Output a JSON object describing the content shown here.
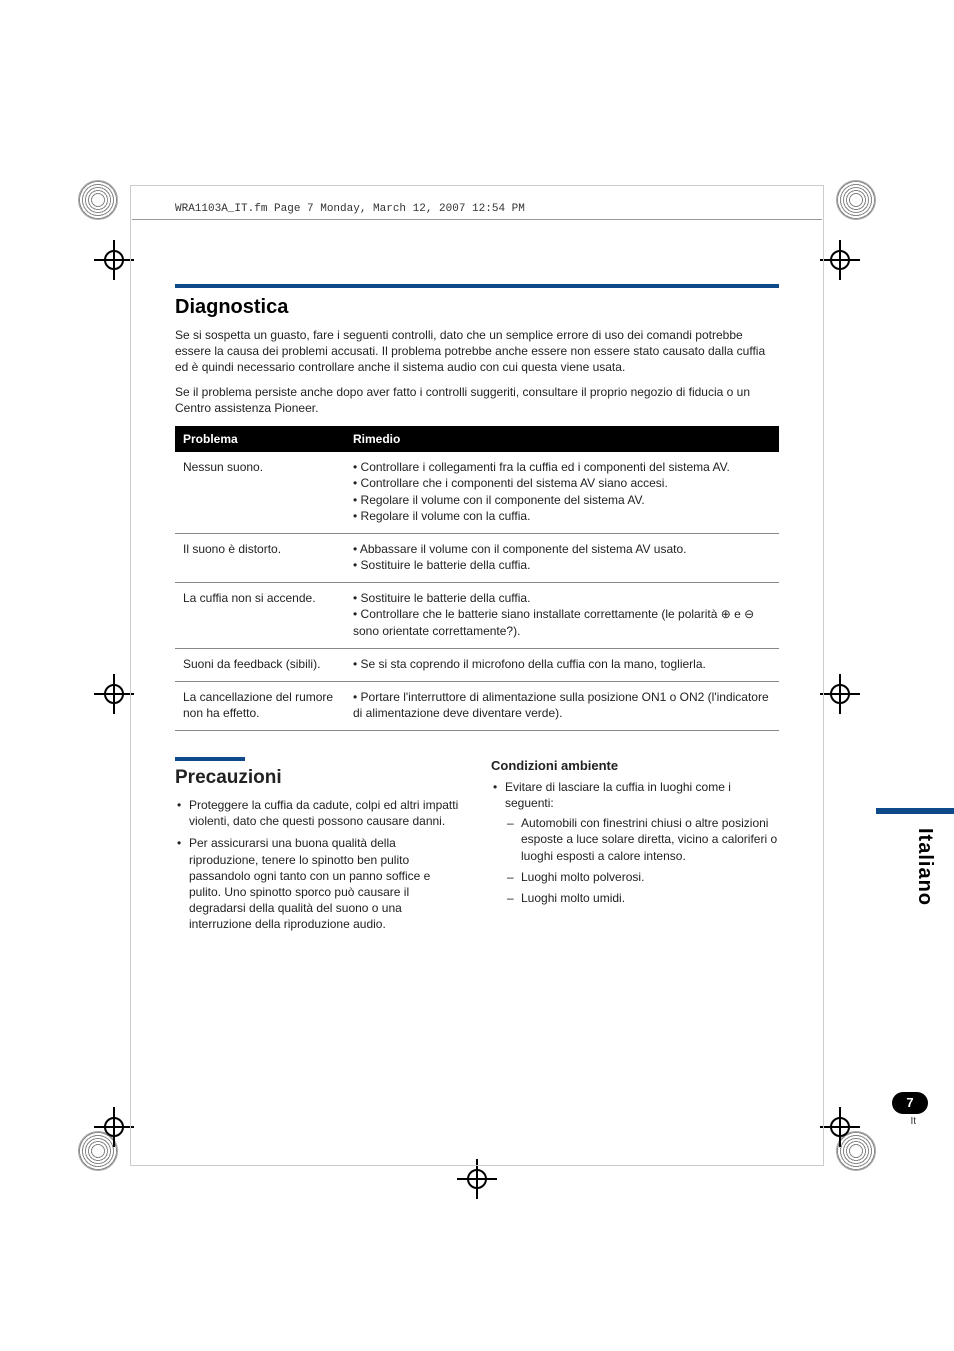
{
  "header": {
    "file_line": "WRA1103A_IT.fm  Page 7  Monday, March 12, 2007  12:54 PM"
  },
  "side": {
    "language_label": "Italiano",
    "page_number": "7",
    "lang_code": "It"
  },
  "diagnostica": {
    "title": "Diagnostica",
    "intro1": "Se si sospetta un guasto, fare i seguenti controlli, dato che un semplice errore di uso dei comandi potrebbe essere la causa dei problemi accusati. Il problema potrebbe anche essere non essere stato causato dalla cuffia ed è quindi necessario controllare anche il sistema audio con cui questa viene usata.",
    "intro2": "Se il problema persiste anche dopo aver fatto i controlli suggeriti, consultare il proprio negozio di fiducia o un Centro assistenza Pioneer.",
    "table": {
      "col1_header": "Problema",
      "col2_header": "Rimedio",
      "rows": [
        {
          "problem": "Nessun suono.",
          "remedies": [
            "• Controllare i collegamenti fra la cuffia ed i componenti del sistema AV.",
            "• Controllare che i componenti del sistema AV siano accesi.",
            "• Regolare il volume con il componente del sistema AV.",
            "• Regolare il volume con la cuffia."
          ]
        },
        {
          "problem": "Il suono è distorto.",
          "remedies": [
            "• Abbassare il volume con il componente del sistema AV usato.",
            "• Sostituire le batterie della cuffia."
          ]
        },
        {
          "problem": "La cuffia non si accende.",
          "remedies": [
            "• Sostituire le batterie della cuffia.",
            "• Controllare che le batterie siano installate correttamente (le polarità ⊕ e ⊖ sono orientate correttamente?)."
          ]
        },
        {
          "problem": "Suoni da feedback (sibili).",
          "remedies": [
            "• Se si sta coprendo il microfono della cuffia con la mano, toglierla."
          ]
        },
        {
          "problem": "La cancellazione del rumore non ha effetto.",
          "remedies": [
            "• Portare l'interruttore di alimentazione sulla posizione ON1 o ON2 (l'indicatore di alimentazione deve diventare verde)."
          ]
        }
      ]
    }
  },
  "precauzioni": {
    "title": "Precauzioni",
    "left_bullets": [
      "Proteggere la cuffia da cadute, colpi ed altri impatti violenti, dato che questi possono causare danni.",
      "Per assicurarsi una buona qualità della riproduzione, tenere lo spinotto ben pulito passandolo ogni tanto con un panno soffice e pulito. Uno spinotto sporco può causare il degradarsi della qualità del suono o una interruzione della riproduzione audio."
    ],
    "right": {
      "heading": "Condizioni ambiente",
      "intro": "Evitare di lasciare la cuffia in luoghi come i seguenti:",
      "dashes": [
        "Automobili con finestrini chiusi o altre posizioni esposte a luce solare diretta, vicino a caloriferi o luoghi esposti a calore intenso.",
        "Luoghi molto polverosi.",
        "Luoghi molto umidi."
      ]
    }
  },
  "colors": {
    "accent": "#0e4a8a",
    "text": "#222222",
    "rule": "#888888",
    "black": "#000000",
    "white": "#ffffff"
  }
}
